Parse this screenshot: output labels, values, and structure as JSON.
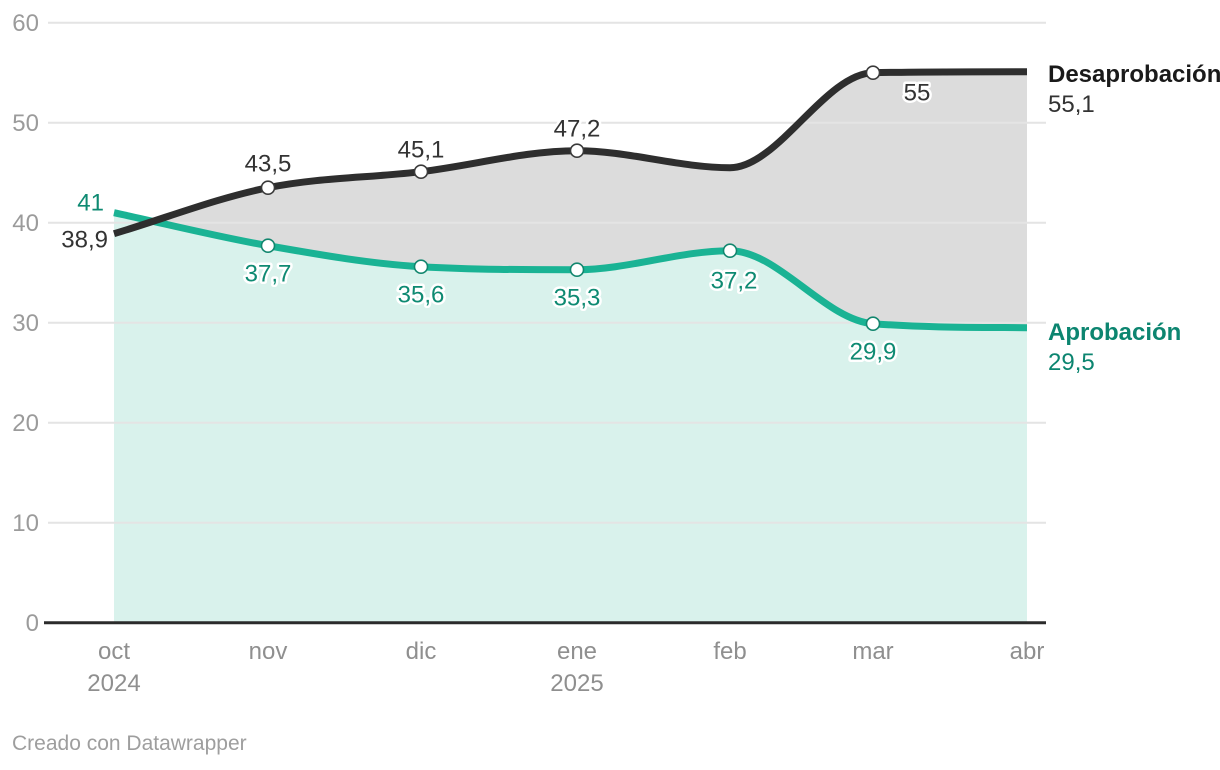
{
  "chart_data": {
    "type": "line",
    "title": "",
    "categories": [
      "oct 2024",
      "nov",
      "dic",
      "ene 2025",
      "feb",
      "mar",
      "abr"
    ],
    "x_axis": {
      "ticks": [
        {
          "label": "oct",
          "year": "2024"
        },
        {
          "label": "nov",
          "year": ""
        },
        {
          "label": "dic",
          "year": ""
        },
        {
          "label": "ene",
          "year": "2025"
        },
        {
          "label": "feb",
          "year": ""
        },
        {
          "label": "mar",
          "year": ""
        },
        {
          "label": "abr",
          "year": ""
        }
      ]
    },
    "y_axis": {
      "ticks": [
        0,
        10,
        20,
        30,
        40,
        50,
        60
      ],
      "range": [
        0,
        60
      ],
      "grid": true
    },
    "series": [
      {
        "name": "Desaprobación",
        "values": [
          38.9,
          43.5,
          45.1,
          47.2,
          45.5,
          55.0,
          55.1
        ],
        "point_labels": [
          "38,9",
          "43,5",
          "45,1",
          "47,2",
          "",
          "55",
          ""
        ],
        "end_value_label": "55,1"
      },
      {
        "name": "Aprobación",
        "values": [
          41.0,
          37.7,
          35.6,
          35.3,
          37.2,
          29.9,
          29.5
        ],
        "point_labels": [
          "41",
          "37,7",
          "35,6",
          "35,3",
          "37,2",
          "29,9",
          ""
        ],
        "end_value_label": "29,5"
      }
    ],
    "legend_position": "right-of-line-ends"
  },
  "footer": {
    "credit": "Creado con Datawrapper"
  },
  "colors": {
    "desaprobacion_line": "#2e2e2e",
    "desaprobacion_fill": "#dcdcdc",
    "desaprobacion_text": "#333333",
    "desaprobacion_marker": "#3a3a3a",
    "aprobacion_line": "#1ab394",
    "aprobacion_fill": "#d9f2ec",
    "aprobacion_text": "#0e8a72",
    "aprobacion_marker": "#12866e",
    "grid": "#e4e4e4",
    "baseline": "#2b2b2b",
    "y_tick_text": "#9b9b9b",
    "x_tick_text": "#8f8f8f",
    "credit_text": "#9e9e9e",
    "marker_fill": "#ffffff",
    "label_halo": "#ffffff"
  }
}
